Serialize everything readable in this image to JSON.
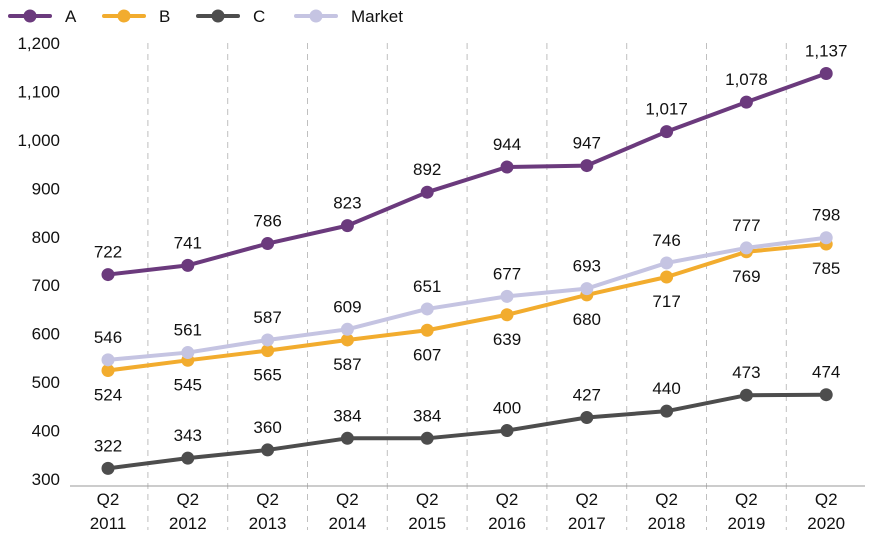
{
  "chart_data": {
    "type": "line",
    "categories": [
      [
        "Q2",
        "2011"
      ],
      [
        "Q2",
        "2012"
      ],
      [
        "Q2",
        "2013"
      ],
      [
        "Q2",
        "2014"
      ],
      [
        "Q2",
        "2015"
      ],
      [
        "Q2",
        "2016"
      ],
      [
        "Q2",
        "2017"
      ],
      [
        "Q2",
        "2018"
      ],
      [
        "Q2",
        "2019"
      ],
      [
        "Q2",
        "2020"
      ]
    ],
    "ylim": [
      300,
      1200
    ],
    "yticks": [
      300,
      400,
      500,
      600,
      700,
      800,
      900,
      1000,
      1100,
      1200
    ],
    "ytick_labels": [
      "300",
      "400",
      "500",
      "600",
      "700",
      "800",
      "900",
      "1,000",
      "1,100",
      "1,200"
    ],
    "grid": "vertical-dashed",
    "legend_position": "top-left",
    "series": [
      {
        "name": "A",
        "color": "#6B3A7D",
        "values": [
          722,
          741,
          786,
          823,
          892,
          944,
          947,
          1017,
          1078,
          1137
        ],
        "labels": [
          "722",
          "741",
          "786",
          "823",
          "892",
          "944",
          "947",
          "1,017",
          "1,078",
          "1,137"
        ],
        "label_position": [
          "above",
          "above",
          "above",
          "above",
          "above",
          "above",
          "above",
          "above",
          "above",
          "above"
        ]
      },
      {
        "name": "B",
        "color": "#F2AC2E",
        "values": [
          524,
          545,
          565,
          587,
          607,
          639,
          680,
          717,
          769,
          785
        ],
        "labels": [
          "524",
          "545",
          "565",
          "587",
          "607",
          "639",
          "680",
          "717",
          "769",
          "785"
        ],
        "label_position": [
          "below",
          "below",
          "below",
          "below",
          "below",
          "below",
          "below",
          "below",
          "below",
          "below"
        ]
      },
      {
        "name": "C",
        "color": "#4D4D4D",
        "values": [
          322,
          343,
          360,
          384,
          384,
          400,
          427,
          440,
          473,
          474
        ],
        "labels": [
          "322",
          "343",
          "360",
          "384",
          "384",
          "400",
          "427",
          "440",
          "473",
          "474"
        ],
        "label_position": [
          "above",
          "above",
          "above",
          "above",
          "above",
          "above",
          "above",
          "above",
          "above",
          "above"
        ]
      },
      {
        "name": "Market",
        "color": "#C5C4E2",
        "values": [
          546,
          561,
          587,
          609,
          651,
          677,
          693,
          746,
          777,
          798
        ],
        "labels": [
          "546",
          "561",
          "587",
          "609",
          "651",
          "677",
          "693",
          "746",
          "777",
          "798"
        ],
        "label_position": [
          "above",
          "above",
          "above",
          "above",
          "above",
          "above",
          "above",
          "above",
          "above",
          "above"
        ]
      }
    ],
    "draw_order": [
      "C",
      "B",
      "Market",
      "A"
    ]
  }
}
